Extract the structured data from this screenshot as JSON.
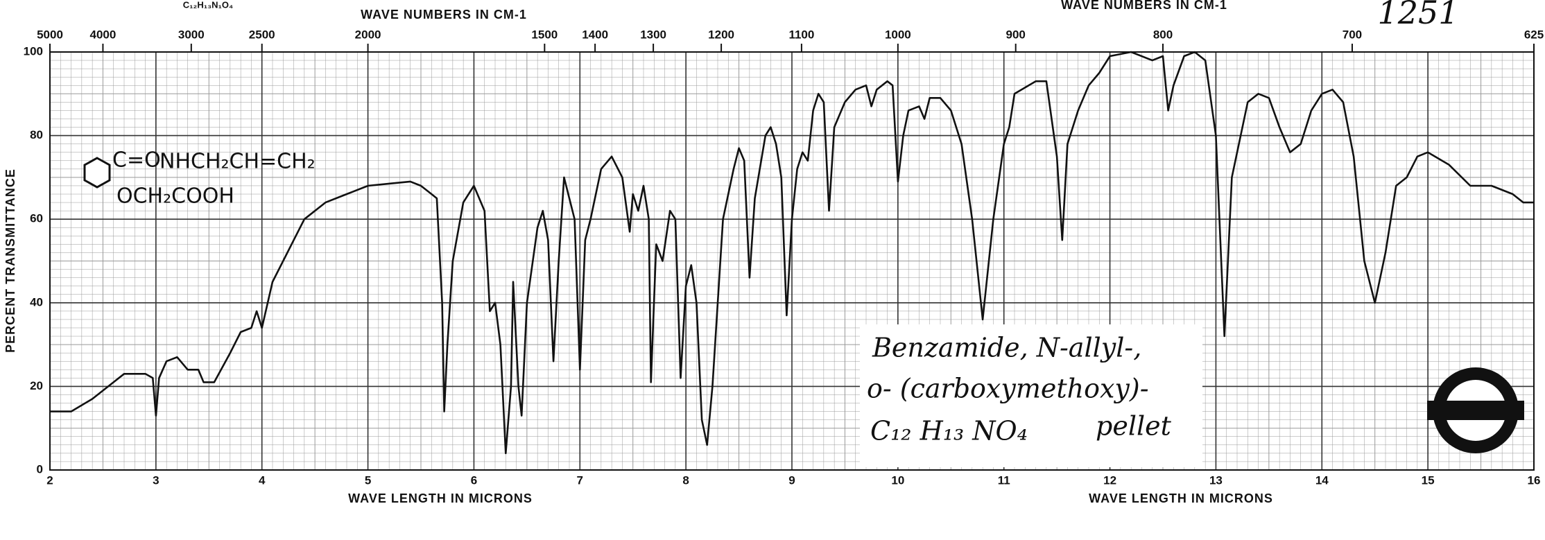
{
  "chart_data": {
    "type": "line",
    "xlabel": "WAVE LENGTH IN MICRONS",
    "ylabel": "PERCENT TRANSMITTANCE",
    "x2label": "WAVE NUMBERS IN CM-1",
    "formula_top": "C₁₂H₁₃N₁O₄",
    "catalog_number": "1251",
    "structure": [
      "C=O",
      "NHCH₂CH=CH₂",
      "OCH₂COOH"
    ],
    "annotation": [
      "Benzamide, N-allyl-,",
      "o- (carboxymethoxy)-",
      "C₁₂ H₁₃ NO₄",
      "pellet"
    ],
    "xlim": [
      2,
      16
    ],
    "xticks": [
      2,
      3,
      4,
      5,
      6,
      7,
      8,
      9,
      10,
      11,
      12,
      13,
      14,
      15,
      16
    ],
    "x2scale": "reciprocal",
    "x2lim": [
      5000,
      625
    ],
    "x2ticks": [
      5000,
      4000,
      3000,
      2500,
      2000,
      1500,
      1400,
      1300,
      1200,
      1100,
      1000,
      900,
      800,
      700,
      625
    ],
    "ylim": [
      0,
      100
    ],
    "yticks": [
      0,
      20,
      40,
      60,
      80,
      100
    ],
    "grid": true,
    "color": "#111111",
    "x": [
      2.0,
      2.2,
      2.4,
      2.6,
      2.7,
      2.9,
      2.97,
      3.0,
      3.03,
      3.1,
      3.2,
      3.3,
      3.4,
      3.45,
      3.55,
      3.7,
      3.8,
      3.9,
      3.95,
      4.0,
      4.1,
      4.2,
      4.3,
      4.4,
      4.6,
      4.8,
      5.0,
      5.2,
      5.4,
      5.5,
      5.6,
      5.65,
      5.7,
      5.72,
      5.75,
      5.8,
      5.9,
      6.0,
      6.1,
      6.15,
      6.2,
      6.25,
      6.3,
      6.35,
      6.37,
      6.42,
      6.45,
      6.5,
      6.6,
      6.65,
      6.7,
      6.75,
      6.8,
      6.85,
      6.9,
      6.95,
      7.0,
      7.05,
      7.1,
      7.2,
      7.3,
      7.4,
      7.47,
      7.5,
      7.55,
      7.6,
      7.65,
      7.67,
      7.72,
      7.78,
      7.85,
      7.9,
      7.95,
      8.0,
      8.05,
      8.1,
      8.15,
      8.2,
      8.25,
      8.35,
      8.45,
      8.5,
      8.55,
      8.6,
      8.65,
      8.75,
      8.8,
      8.85,
      8.9,
      8.95,
      9.0,
      9.05,
      9.1,
      9.15,
      9.2,
      9.25,
      9.3,
      9.35,
      9.4,
      9.5,
      9.6,
      9.7,
      9.75,
      9.8,
      9.9,
      9.95,
      10.0,
      10.05,
      10.1,
      10.2,
      10.25,
      10.3,
      10.4,
      10.5,
      10.6,
      10.7,
      10.8,
      10.9,
      11.0,
      11.05,
      11.1,
      11.3,
      11.4,
      11.5,
      11.55,
      11.6,
      11.7,
      11.8,
      11.9,
      12.0,
      12.2,
      12.4,
      12.5,
      12.55,
      12.6,
      12.7,
      12.8,
      12.9,
      13.0,
      13.08,
      13.15,
      13.3,
      13.4,
      13.5,
      13.6,
      13.7,
      13.8,
      13.9,
      14.0,
      14.1,
      14.2,
      14.3,
      14.4,
      14.5,
      14.6,
      14.7,
      14.8,
      14.9,
      15.0,
      15.2,
      15.4,
      15.6,
      15.8,
      15.9,
      16.0
    ],
    "values": [
      14,
      14,
      17,
      21,
      23,
      23,
      22,
      13,
      22,
      26,
      27,
      24,
      24,
      21,
      21,
      28,
      33,
      34,
      38,
      34,
      45,
      50,
      55,
      60,
      64,
      66,
      68,
      68.5,
      69,
      68,
      66,
      65,
      40,
      14,
      30,
      50,
      64,
      68,
      62,
      38,
      40,
      30,
      4,
      20,
      45,
      20,
      13,
      40,
      58,
      62,
      55,
      26,
      50,
      70,
      65,
      60,
      24,
      55,
      60,
      72,
      75,
      70,
      57,
      66,
      62,
      68,
      60,
      21,
      54,
      50,
      62,
      60,
      22,
      44,
      49,
      40,
      12,
      6,
      20,
      60,
      72,
      77,
      74,
      46,
      65,
      80,
      82,
      78,
      70,
      37,
      60,
      72,
      76,
      74,
      86,
      90,
      88,
      62,
      82,
      88,
      91,
      92,
      87,
      91,
      93,
      92,
      69,
      80,
      86,
      87,
      84,
      89,
      89,
      86,
      78,
      60,
      36,
      60,
      78,
      82,
      90,
      93,
      93,
      75,
      55,
      78,
      86,
      92,
      95,
      99,
      100,
      98,
      99,
      86,
      92,
      99,
      100,
      98,
      80,
      32,
      70,
      88,
      90,
      89,
      82,
      76,
      78,
      86,
      90,
      91,
      88,
      75,
      50,
      40,
      52,
      68,
      70,
      75,
      76,
      73,
      68,
      68,
      66,
      64,
      64
    ]
  }
}
